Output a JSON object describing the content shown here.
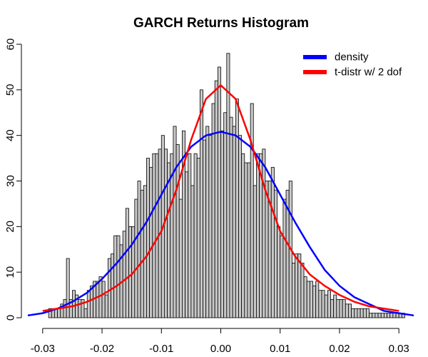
{
  "chart_data": {
    "type": "bar",
    "title": "GARCH Returns Histogram",
    "xlabel": "",
    "ylabel": "",
    "xlim": [
      -0.0325,
      0.0325
    ],
    "ylim": [
      0,
      60
    ],
    "x_ticks": [
      -0.03,
      -0.02,
      -0.01,
      0.0,
      0.01,
      0.02,
      0.03
    ],
    "x_tick_labels": [
      "-0.03",
      "-0.02",
      "-0.01",
      "0.00",
      "0.01",
      "0.02",
      "0.03"
    ],
    "y_ticks": [
      0,
      10,
      20,
      30,
      40,
      50,
      60
    ],
    "y_tick_labels": [
      "0",
      "10",
      "20",
      "30",
      "40",
      "50",
      "60"
    ],
    "grid": false,
    "bin_width": 0.0005,
    "bins_start": -0.029,
    "counts": [
      2,
      2,
      2,
      2,
      3,
      4,
      13,
      4,
      6,
      5,
      4,
      4,
      2,
      6,
      7,
      8,
      8,
      9,
      8,
      5,
      13,
      14,
      18,
      18,
      16,
      19,
      24,
      20,
      20,
      26,
      30,
      28,
      29,
      35,
      33,
      36,
      36,
      37,
      40,
      37,
      34,
      36,
      42,
      38,
      26,
      41,
      32,
      36,
      29,
      36,
      35,
      50,
      39,
      42,
      40,
      47,
      52,
      55,
      41,
      45,
      58,
      44,
      42,
      48,
      40,
      36,
      34,
      34,
      47,
      29,
      36,
      36,
      37,
      30,
      30,
      33,
      28,
      20,
      18,
      26,
      28,
      30,
      12,
      14,
      14,
      12,
      9,
      8,
      8,
      7,
      8,
      6,
      6,
      5,
      6,
      4,
      5,
      4,
      4,
      4,
      3,
      3,
      2,
      2,
      2,
      2,
      2,
      2,
      1,
      1,
      1,
      1,
      1,
      1,
      1,
      1,
      1,
      1,
      1,
      1
    ],
    "series": [
      {
        "name": "density",
        "color": "#0000ff",
        "x": [
          -0.0325,
          -0.03,
          -0.0275,
          -0.025,
          -0.0225,
          -0.02,
          -0.0175,
          -0.015,
          -0.0125,
          -0.01,
          -0.0075,
          -0.005,
          -0.0025,
          0.0,
          0.0025,
          0.005,
          0.0075,
          0.01,
          0.0125,
          0.015,
          0.0175,
          0.02,
          0.0225,
          0.025,
          0.0275,
          0.03,
          0.0325
        ],
        "values": [
          0.5,
          1.0,
          2.0,
          3.5,
          5.5,
          8.5,
          12.0,
          16.0,
          21.0,
          27.0,
          33.0,
          37.5,
          40.0,
          40.8,
          40.0,
          37.5,
          33.0,
          27.0,
          21.0,
          15.5,
          10.5,
          7.0,
          4.5,
          3.0,
          1.5,
          1.0,
          0.5
        ]
      },
      {
        "name": "t-distr w/ 2 dof",
        "color": "#ff0000",
        "x": [
          -0.03,
          -0.0275,
          -0.025,
          -0.0225,
          -0.02,
          -0.0175,
          -0.015,
          -0.0125,
          -0.01,
          -0.0075,
          -0.005,
          -0.0025,
          0.0,
          0.0025,
          0.005,
          0.0075,
          0.01,
          0.0125,
          0.015,
          0.0175,
          0.02,
          0.0225,
          0.025,
          0.0275,
          0.03
        ],
        "values": [
          1.5,
          2.0,
          2.5,
          3.5,
          5.0,
          7.0,
          9.5,
          13.5,
          19.0,
          28.0,
          39.0,
          48.0,
          51.0,
          48.0,
          39.0,
          28.0,
          19.0,
          13.5,
          9.5,
          7.0,
          5.0,
          3.5,
          2.5,
          2.0,
          1.5
        ]
      }
    ],
    "legend": {
      "placement": "top-right",
      "entries": [
        "density",
        "t-distr w/ 2 dof"
      ]
    },
    "bar_fill": "#c8c8c8",
    "bar_stroke": "#000000"
  }
}
